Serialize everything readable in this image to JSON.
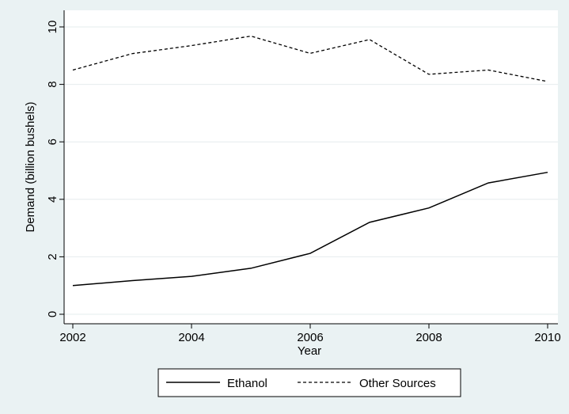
{
  "chart_data": {
    "type": "line",
    "xlabel": "Year",
    "ylabel": "Demand (billion bushels)",
    "xlim": [
      2002,
      2010
    ],
    "ylim": [
      0,
      10
    ],
    "xticks": [
      "2002",
      "2004",
      "2006",
      "2008",
      "2010"
    ],
    "yticks": [
      "0",
      "2",
      "4",
      "6",
      "8",
      "10"
    ],
    "grid": true,
    "legend_position": "bottom",
    "x": [
      2002,
      2003,
      2004,
      2005,
      2006,
      2007,
      2008,
      2009,
      2010
    ],
    "series": [
      {
        "name": "Ethanol",
        "style": "solid",
        "values": [
          1.0,
          1.17,
          1.32,
          1.6,
          2.12,
          3.2,
          3.7,
          4.57,
          4.94
        ]
      },
      {
        "name": "Other Sources",
        "style": "dashed",
        "values": [
          8.5,
          9.07,
          9.35,
          9.68,
          9.08,
          9.56,
          8.35,
          8.5,
          8.1
        ]
      }
    ]
  }
}
